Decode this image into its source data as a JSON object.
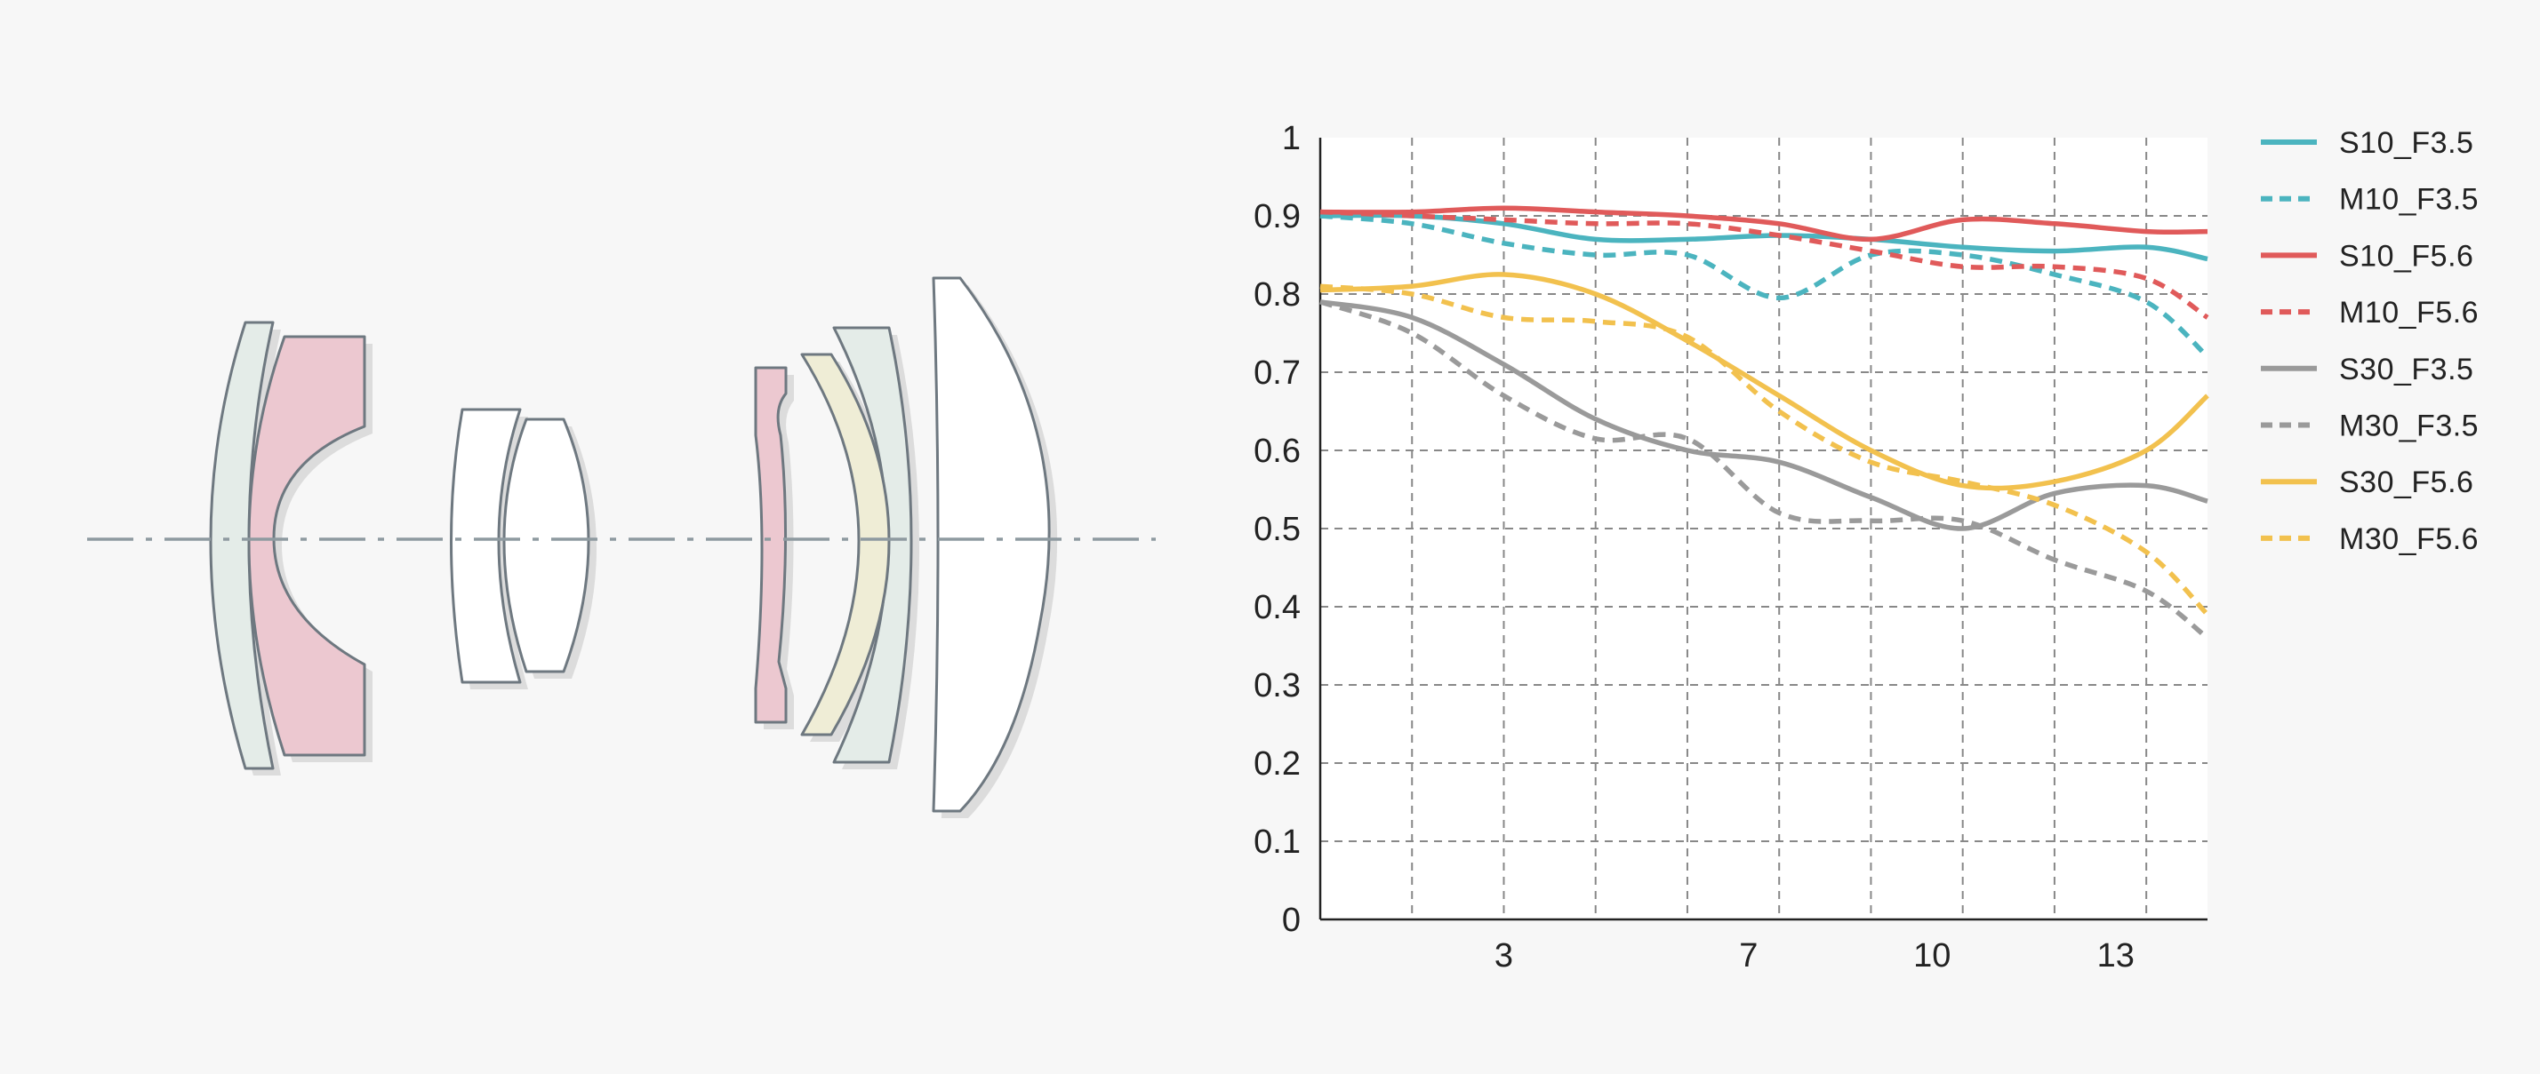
{
  "colors": {
    "background": "#f7f7f7",
    "lens_outline": "#6e7880",
    "lens_shadow": "#dcdcdc",
    "axis_line": "#8e9aa0",
    "grid": "#888888",
    "lens_green": "#e4ece8",
    "lens_pink": "#ecc8d0",
    "lens_yellow": "#efedd6",
    "lens_white": "#ffffff"
  },
  "chart_data": {
    "type": "line",
    "xlim": [
      0,
      14.5
    ],
    "ylim": [
      0,
      1
    ],
    "x_ticks": [
      3,
      7,
      10,
      13
    ],
    "x_grid": [
      1.5,
      3,
      4.5,
      6,
      7.5,
      9,
      10.5,
      12,
      13.5
    ],
    "y_ticks": [
      0,
      0.1,
      0.2,
      0.3,
      0.4,
      0.5,
      0.6,
      0.7,
      0.8,
      0.9,
      1
    ],
    "y_tick_labels": [
      "0",
      "0.1",
      "0.2",
      "0.3",
      "0.4",
      "0.5",
      "0.6",
      "0.7",
      "0.8",
      "0.9",
      "1"
    ],
    "x_tick_labels": [
      "3",
      "7",
      "10",
      "13"
    ],
    "grid": true,
    "legend_position": "right",
    "series": [
      {
        "name": "S10_F3.5",
        "color": "#4bb4bf",
        "dashed": false,
        "x": [
          0,
          1.5,
          3,
          4.5,
          6,
          7.5,
          9,
          10.5,
          12,
          13.5,
          14.5
        ],
        "y": [
          0.9,
          0.9,
          0.89,
          0.87,
          0.87,
          0.875,
          0.87,
          0.86,
          0.855,
          0.86,
          0.845
        ]
      },
      {
        "name": "M10_F3.5",
        "color": "#4bb4bf",
        "dashed": false,
        "x": [
          0,
          1.5,
          3,
          4.5,
          6,
          7.5,
          9,
          10.5,
          12,
          13.5,
          14.5
        ],
        "y": [
          0.9,
          0.89,
          0.865,
          0.85,
          0.85,
          0.795,
          0.85,
          0.85,
          0.825,
          0.79,
          0.72
        ]
      },
      {
        "name": "S10_F5.6",
        "color": "#e05a5a",
        "dashed": false,
        "x": [
          0,
          1.5,
          3,
          4.5,
          6,
          7.5,
          9,
          10.5,
          12,
          13.5,
          14.5
        ],
        "y": [
          0.905,
          0.905,
          0.91,
          0.905,
          0.9,
          0.89,
          0.87,
          0.895,
          0.89,
          0.88,
          0.88
        ]
      },
      {
        "name": "M10_F5.6",
        "color": "#e05a5a",
        "dashed": false,
        "x": [
          0,
          1.5,
          3,
          4.5,
          6,
          7.5,
          9,
          10.5,
          12,
          13.5,
          14.5
        ],
        "y": [
          0.905,
          0.9,
          0.895,
          0.89,
          0.89,
          0.875,
          0.855,
          0.835,
          0.835,
          0.82,
          0.77
        ]
      },
      {
        "name": "S30_F3.5",
        "color": "#9a9a9a",
        "dashed": false,
        "x": [
          0,
          1.5,
          3,
          4.5,
          6,
          7.5,
          9,
          10.5,
          12,
          13.5,
          14.5
        ],
        "y": [
          0.79,
          0.77,
          0.71,
          0.64,
          0.6,
          0.585,
          0.54,
          0.5,
          0.545,
          0.555,
          0.535
        ]
      },
      {
        "name": "M30_F3.5",
        "color": "#9a9a9a",
        "dashed": false,
        "x": [
          0,
          1.5,
          3,
          4.5,
          6,
          7.5,
          9,
          10.5,
          12,
          13.5,
          14.5
        ],
        "y": [
          0.79,
          0.75,
          0.67,
          0.615,
          0.615,
          0.52,
          0.51,
          0.51,
          0.46,
          0.42,
          0.36
        ]
      },
      {
        "name": "S30_F5.6",
        "color": "#f2c14e",
        "dashed": false,
        "x": [
          0,
          1.5,
          3,
          4.5,
          6,
          7.5,
          9,
          10.5,
          12,
          13.5,
          14.5
        ],
        "y": [
          0.805,
          0.81,
          0.825,
          0.8,
          0.74,
          0.67,
          0.6,
          0.555,
          0.56,
          0.6,
          0.67
        ]
      },
      {
        "name": "M30_F5.6",
        "color": "#f2c14e",
        "dashed": false,
        "x": [
          0,
          1.5,
          3,
          4.5,
          6,
          7.5,
          9,
          10.5,
          12,
          13.5,
          14.5
        ],
        "y": [
          0.81,
          0.8,
          0.77,
          0.765,
          0.745,
          0.65,
          0.585,
          0.56,
          0.53,
          0.47,
          0.39
        ]
      }
    ]
  },
  "lens_diagram": {
    "optical_axis": true,
    "elements": [
      {
        "name": "element-1",
        "color": "lens_green"
      },
      {
        "name": "element-2",
        "color": "lens_pink"
      },
      {
        "name": "element-3",
        "color": "lens_white"
      },
      {
        "name": "element-4",
        "color": "lens_white"
      },
      {
        "name": "element-5",
        "color": "lens_pink"
      },
      {
        "name": "element-6",
        "color": "lens_yellow"
      },
      {
        "name": "element-7",
        "color": "lens_green"
      },
      {
        "name": "element-8",
        "color": "lens_white"
      }
    ]
  }
}
